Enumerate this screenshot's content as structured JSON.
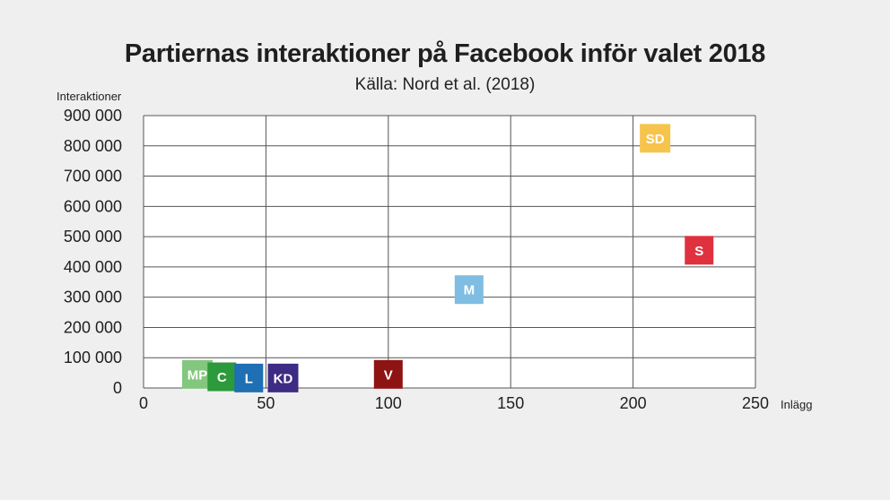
{
  "chart_data": {
    "type": "scatter",
    "title": "Partiernas interaktioner på Facebook inför valet 2018",
    "subtitle": "Källa: Nord et al. (2018)",
    "xlabel": "Inlägg",
    "ylabel": "Interaktioner",
    "xlim": [
      0,
      250
    ],
    "ylim": [
      0,
      900000
    ],
    "x_ticks": [
      0,
      50,
      100,
      150,
      200,
      250
    ],
    "x_tick_labels": [
      "0",
      "50",
      "100",
      "150",
      "200",
      "250"
    ],
    "y_ticks": [
      0,
      100000,
      200000,
      300000,
      400000,
      500000,
      600000,
      700000,
      800000,
      900000
    ],
    "y_tick_labels": [
      "0",
      "100 000",
      "200 000",
      "300 000",
      "400 000",
      "500 000",
      "600 000",
      "700 000",
      "800 000",
      "900 000"
    ],
    "grid": true,
    "points": [
      {
        "label": "MP",
        "x": 22,
        "y": 45000,
        "color": "#83c77f"
      },
      {
        "label": "C",
        "x": 32,
        "y": 37000,
        "color": "#2c9a3a"
      },
      {
        "label": "L",
        "x": 43,
        "y": 33000,
        "color": "#1e6fb3"
      },
      {
        "label": "KD",
        "x": 57,
        "y": 33000,
        "color": "#3d2b84"
      },
      {
        "label": "V",
        "x": 100,
        "y": 45000,
        "color": "#8e1313"
      },
      {
        "label": "M",
        "x": 133,
        "y": 325000,
        "color": "#7fbde3"
      },
      {
        "label": "SD",
        "x": 209,
        "y": 825000,
        "color": "#f6c44d"
      },
      {
        "label": "S",
        "x": 227,
        "y": 455000,
        "color": "#e0313f"
      }
    ]
  }
}
